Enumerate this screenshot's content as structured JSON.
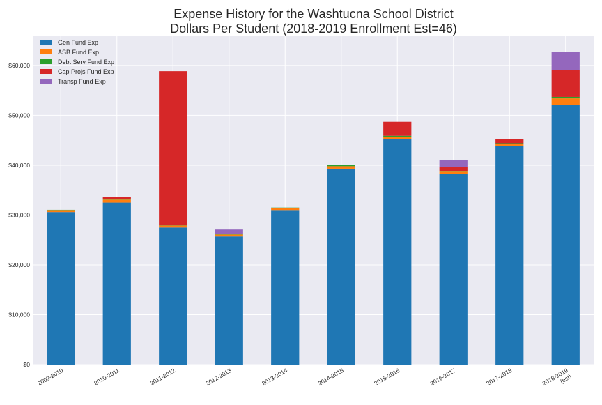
{
  "chart_data": {
    "type": "bar",
    "stacked": true,
    "title_lines": [
      "Expense History for the Washtucna School District",
      "Dollars Per Student (2018-2019 Enrollment Est=46)"
    ],
    "xlabel": "",
    "ylabel": "",
    "categories": [
      "2009-2010",
      "2010-2011",
      "2011-2012",
      "2012-2013",
      "2013-2014",
      "2014-2015",
      "2015-2016",
      "2016-2017",
      "2017-2018",
      "2018-2019\n(est)"
    ],
    "ylim": [
      0,
      66000
    ],
    "yticks": [
      0,
      10000,
      20000,
      30000,
      40000,
      50000,
      60000
    ],
    "ytick_labels": [
      "$0",
      "$10,000",
      "$20,000",
      "$30,000",
      "$40,000",
      "$50,000",
      "$60,000"
    ],
    "grid": true,
    "legend_position": "top-left",
    "series": [
      {
        "name": "Gen Fund Exp",
        "color": "#1f77b4",
        "values": [
          30600,
          32500,
          27500,
          25700,
          31000,
          39300,
          45200,
          38200,
          43900,
          52100
        ]
      },
      {
        "name": "ASB Fund Exp",
        "color": "#ff7f0e",
        "values": [
          400,
          600,
          400,
          400,
          400,
          500,
          500,
          500,
          400,
          1300
        ]
      },
      {
        "name": "Debt Serv Fund Exp",
        "color": "#2ca02c",
        "values": [
          50,
          50,
          50,
          100,
          100,
          300,
          200,
          100,
          100,
          300
        ]
      },
      {
        "name": "Cap Projs Fund Exp",
        "color": "#d62728",
        "values": [
          0,
          500,
          30900,
          0,
          0,
          0,
          2800,
          800,
          800,
          5400
        ]
      },
      {
        "name": "Transp Fund Exp",
        "color": "#9467bd",
        "values": [
          0,
          0,
          0,
          900,
          0,
          0,
          0,
          1400,
          0,
          3600
        ]
      }
    ]
  }
}
